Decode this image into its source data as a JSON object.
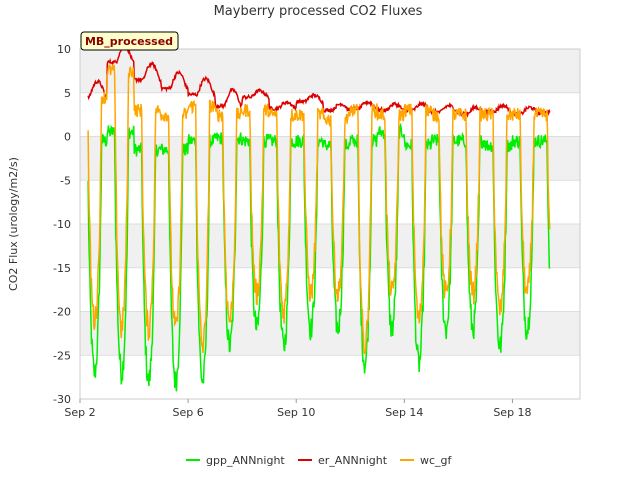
{
  "chart_data": {
    "type": "line",
    "title": "Mayberry processed CO2 Fluxes",
    "badge": "MB_processed",
    "xlabel": "",
    "ylabel": "CO2 Flux (urology/m2/s)",
    "xlim": [
      2.0,
      20.5
    ],
    "ylim": [
      -30,
      10
    ],
    "yticks": [
      10,
      5,
      0,
      -5,
      -10,
      -15,
      -20,
      -25,
      -30
    ],
    "xticks": [
      {
        "label": "Sep 2",
        "value": 2
      },
      {
        "label": "Sep 6",
        "value": 6
      },
      {
        "label": "Sep 10",
        "value": 10
      },
      {
        "label": "Sep 14",
        "value": 14
      },
      {
        "label": "Sep 18",
        "value": 18
      }
    ],
    "grid": true,
    "legend_position": "bottom",
    "day_range": [
      2.3,
      19.4
    ],
    "series": [
      {
        "name": "gpp_ANNnight",
        "color": "#00ee00",
        "night_values": [
          -0.5,
          0.5,
          -1.5,
          -1.5,
          -0.5,
          -0.2,
          -0.5,
          -0.5,
          -0.5,
          -1.0,
          -0.5,
          0.5,
          -1.0,
          -0.5,
          -0.5,
          -1.0,
          -0.5,
          -0.5
        ],
        "day_min": [
          -27,
          -27,
          -28,
          -28,
          -28,
          -24,
          -22,
          -24,
          -22,
          -22,
          -26,
          -22,
          -26,
          -22,
          -22,
          -24,
          -22,
          -22
        ]
      },
      {
        "name": "er_ANNnight",
        "color": "#dd0000",
        "daily_values": [
          4.5,
          8.5,
          6.5,
          5.5,
          4.8,
          3.5,
          4.5,
          3.2,
          4.0,
          3.0,
          3.2,
          3.0,
          3.0,
          2.8,
          2.6,
          2.8,
          2.6,
          2.8,
          2.5
        ]
      },
      {
        "name": "wc_gf",
        "color": "#ffa500",
        "night_values": [
          4.5,
          7.5,
          3.0,
          2.5,
          3.5,
          2.5,
          3.0,
          2.5,
          2.5,
          2.0,
          3.0,
          2.5,
          3.0,
          2.5,
          2.5,
          2.5,
          2.5,
          2.5
        ],
        "day_min": [
          -21,
          -22,
          -22,
          -22,
          -24,
          -21,
          -18,
          -20,
          -18,
          -18,
          -24,
          -18,
          -21,
          -18,
          -18,
          -20,
          -18,
          -18
        ]
      }
    ]
  }
}
